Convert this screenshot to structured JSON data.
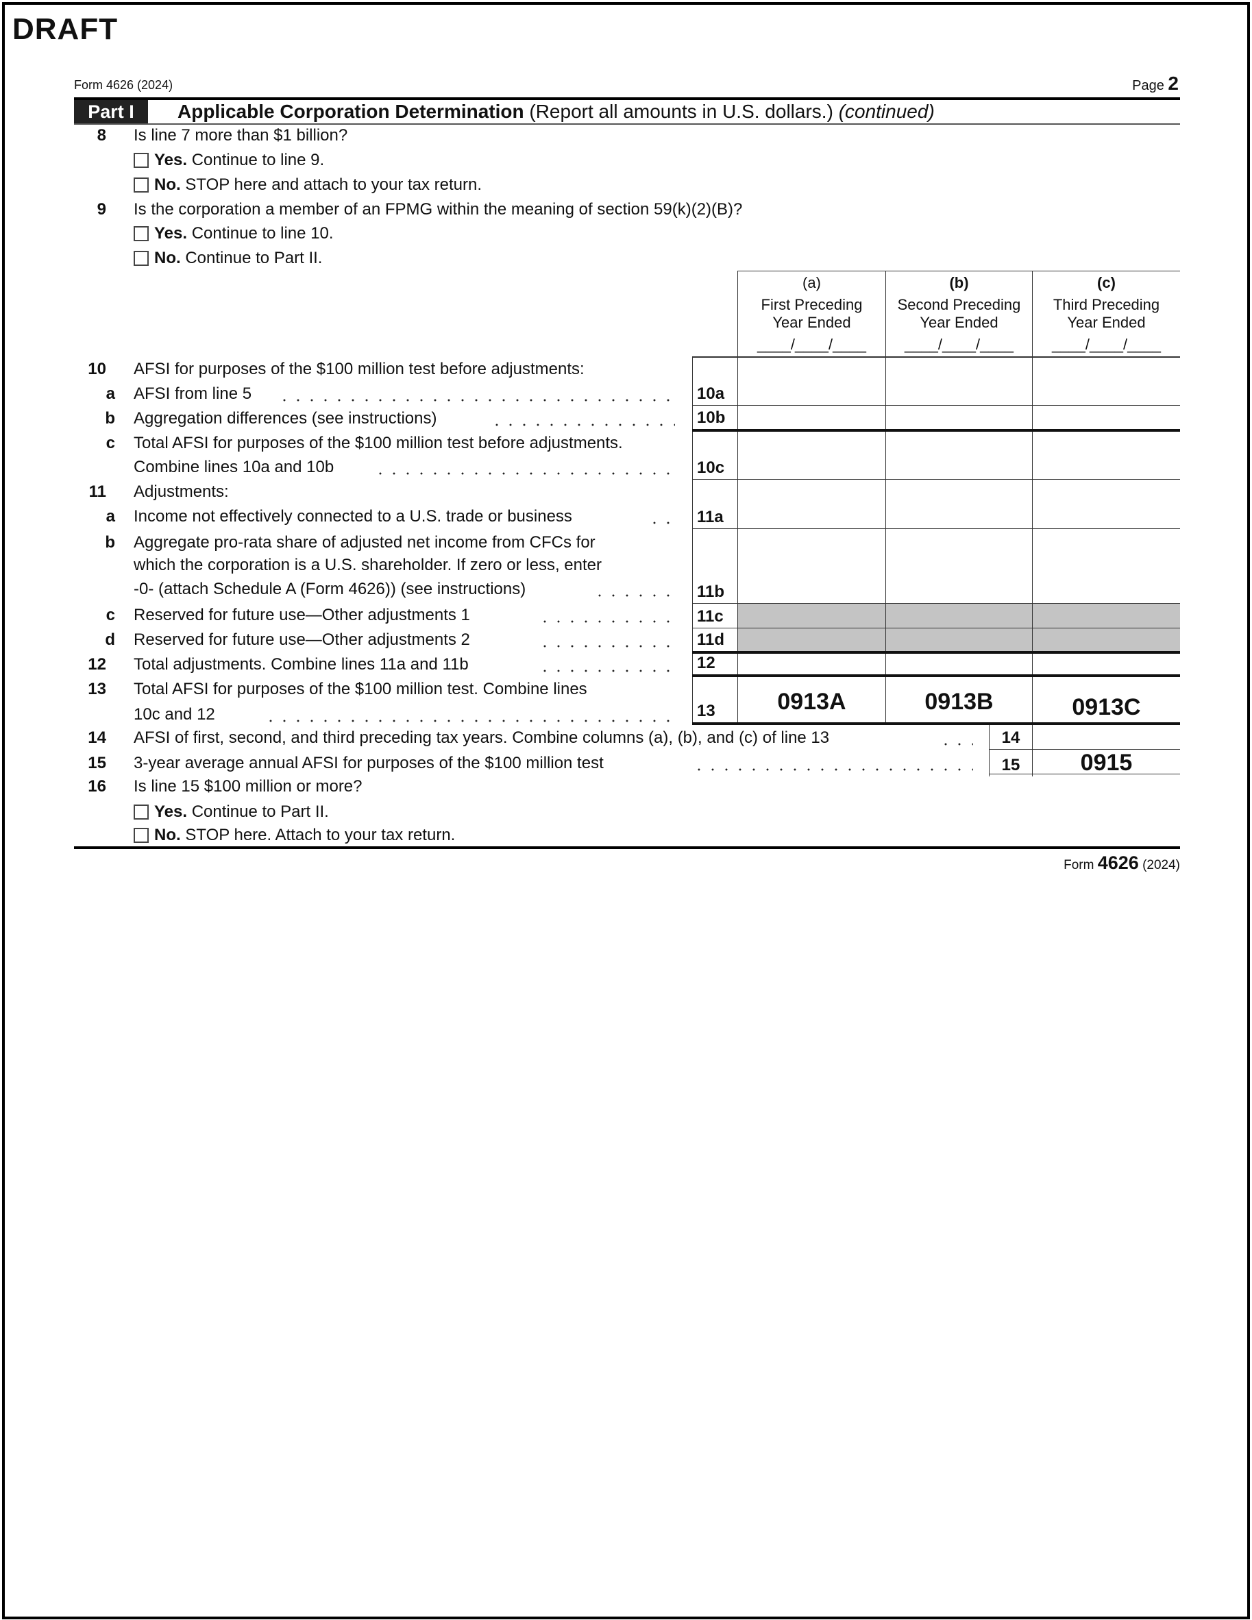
{
  "watermark": "DRAFT",
  "header": {
    "form": "Form 4626 (2024)",
    "page_label": "Page",
    "page_number": "2"
  },
  "part": {
    "label": "Part I",
    "title": "Applicable Corporation Determination",
    "note": "(Report all amounts in U.S. dollars.)",
    "continued": "(continued)"
  },
  "line8": {
    "num": "8",
    "text": "Is line 7 more than $1 billion?",
    "yes_b": "Yes.",
    "yes_t": "Continue to line 9.",
    "no_b": "No.",
    "no_t": "STOP here and attach to your tax return."
  },
  "line9": {
    "num": "9",
    "text": "Is the corporation a member of an FPMG within the meaning of section 59(k)(2)(B)?",
    "yes_b": "Yes.",
    "yes_t": "Continue to line 10.",
    "no_b": "No.",
    "no_t": "Continue to Part II."
  },
  "columns": [
    {
      "letter": "(a)",
      "line1": "First Preceding",
      "line2": "Year Ended",
      "date": "____/____/____"
    },
    {
      "letter": "(b)",
      "line1": "Second Preceding",
      "line2": "Year Ended",
      "date": "____/____/____"
    },
    {
      "letter": "(c)",
      "line1": "Third Preceding",
      "line2": "Year Ended",
      "date": "____/____/____"
    }
  ],
  "line10": {
    "num": "10",
    "text": "AFSI for purposes of the $100 million test before adjustments:",
    "a": {
      "sub": "a",
      "text": "AFSI from line 5",
      "box": "10a"
    },
    "b": {
      "sub": "b",
      "text": "Aggregation differences (see instructions)",
      "box": "10b"
    },
    "c": {
      "sub": "c",
      "text1": "Total AFSI for purposes of the $100 million test before adjustments.",
      "text2": "Combine lines 10a and 10b",
      "box": "10c"
    }
  },
  "line11": {
    "num": "11",
    "text": "Adjustments:",
    "a": {
      "sub": "a",
      "text": "Income not effectively connected to a U.S. trade or business",
      "box": "11a"
    },
    "b": {
      "sub": "b",
      "text1": "Aggregate pro-rata share of adjusted net income from CFCs for",
      "text2": "which the corporation is a U.S. shareholder. If zero or less, enter",
      "text3": "-0- (attach Schedule A (Form 4626)) (see instructions)",
      "box": "11b"
    },
    "c": {
      "sub": "c",
      "text": "Reserved for future use—Other adjustments 1",
      "box": "11c"
    },
    "d": {
      "sub": "d",
      "text": "Reserved for future use—Other adjustments 2",
      "box": "11d"
    }
  },
  "line12": {
    "num": "12",
    "text": "Total adjustments. Combine lines 11a and 11b",
    "box": "12"
  },
  "line13": {
    "num": "13",
    "text1": "Total AFSI for purposes of the $100 million test. Combine lines",
    "text2": "10c and 12",
    "box": "13",
    "values": [
      "0913A",
      "0913B",
      "0913C"
    ]
  },
  "line14": {
    "num": "14",
    "text": "AFSI of first, second, and third preceding tax years. Combine columns (a), (b), and (c) of line 13",
    "box": "14",
    "value": ""
  },
  "line15": {
    "num": "15",
    "text": "3-year average annual AFSI for purposes of the $100 million test",
    "box": "15",
    "value": "0915"
  },
  "line16": {
    "num": "16",
    "text": "Is line 15 $100 million or more?",
    "yes_b": "Yes.",
    "yes_t": "Continue to Part II.",
    "no_b": "No.",
    "no_t": "STOP here. Attach to your tax return."
  },
  "footer": {
    "form_word": "Form",
    "form_number": "4626",
    "year": "(2024)"
  },
  "colors": {
    "shaded_cell": "#c4c4c4",
    "part_label_bg": "#222222"
  }
}
